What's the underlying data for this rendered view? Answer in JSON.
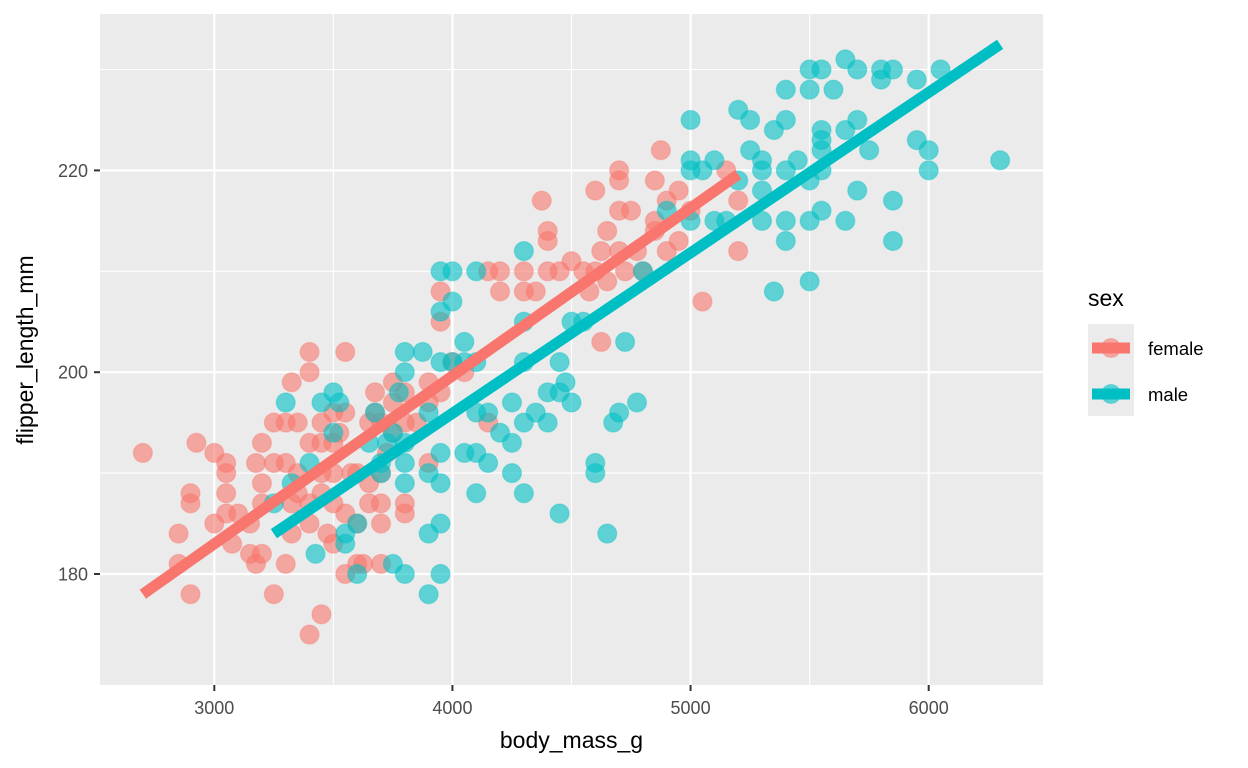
{
  "chart_data": {
    "type": "scatter",
    "title": "",
    "xlabel": "body_mass_g",
    "ylabel": "flipper_length_mm",
    "xlim": [
      2520,
      6480
    ],
    "ylim": [
      169,
      235.5
    ],
    "xticks": [
      3000,
      4000,
      5000,
      6000
    ],
    "xtick_labels": [
      "3000",
      "4000",
      "5000",
      "6000"
    ],
    "yticks": [
      180,
      200,
      220
    ],
    "ytick_labels": [
      "180",
      "200",
      "220"
    ],
    "x_minor": [
      3500,
      4500,
      5500
    ],
    "y_minor": [
      190,
      210,
      230
    ],
    "grid": true,
    "background": "#EBEBEB",
    "legend": {
      "title": "sex",
      "position": "right",
      "entries": [
        {
          "label": "female",
          "color": "#F8766D"
        },
        {
          "label": "male",
          "color": "#00BFC4"
        }
      ]
    },
    "series": [
      {
        "name": "female",
        "color": "#F8766D",
        "points": [
          [
            2700,
            192
          ],
          [
            2850,
            184
          ],
          [
            2850,
            181
          ],
          [
            2900,
            187
          ],
          [
            2900,
            188
          ],
          [
            2900,
            178
          ],
          [
            2925,
            193
          ],
          [
            3000,
            192
          ],
          [
            3000,
            185
          ],
          [
            3050,
            190
          ],
          [
            3050,
            188
          ],
          [
            3050,
            186
          ],
          [
            3050,
            191
          ],
          [
            3075,
            183
          ],
          [
            3100,
            186
          ],
          [
            3150,
            185
          ],
          [
            3150,
            182
          ],
          [
            3175,
            181
          ],
          [
            3175,
            191
          ],
          [
            3200,
            193
          ],
          [
            3200,
            189
          ],
          [
            3200,
            187
          ],
          [
            3200,
            182
          ],
          [
            3250,
            195
          ],
          [
            3250,
            191
          ],
          [
            3250,
            178
          ],
          [
            3300,
            195
          ],
          [
            3300,
            191
          ],
          [
            3300,
            181
          ],
          [
            3325,
            199
          ],
          [
            3325,
            187
          ],
          [
            3325,
            184
          ],
          [
            3350,
            195
          ],
          [
            3350,
            190
          ],
          [
            3350,
            188
          ],
          [
            3400,
            202
          ],
          [
            3400,
            200
          ],
          [
            3400,
            193
          ],
          [
            3400,
            187
          ],
          [
            3400,
            185
          ],
          [
            3400,
            174
          ],
          [
            3450,
            195
          ],
          [
            3450,
            193
          ],
          [
            3450,
            190
          ],
          [
            3450,
            188
          ],
          [
            3450,
            176
          ],
          [
            3475,
            184
          ],
          [
            3500,
            196
          ],
          [
            3500,
            193
          ],
          [
            3500,
            190
          ],
          [
            3500,
            187
          ],
          [
            3500,
            183
          ],
          [
            3525,
            194
          ],
          [
            3550,
            202
          ],
          [
            3550,
            196
          ],
          [
            3550,
            186
          ],
          [
            3550,
            180
          ],
          [
            3575,
            190
          ],
          [
            3600,
            190
          ],
          [
            3600,
            185
          ],
          [
            3600,
            181
          ],
          [
            3625,
            181
          ],
          [
            3650,
            195
          ],
          [
            3650,
            189
          ],
          [
            3650,
            187
          ],
          [
            3675,
            198
          ],
          [
            3675,
            196
          ],
          [
            3700,
            195
          ],
          [
            3700,
            190
          ],
          [
            3700,
            187
          ],
          [
            3700,
            185
          ],
          [
            3700,
            181
          ],
          [
            3725,
            192
          ],
          [
            3750,
            199
          ],
          [
            3750,
            197
          ],
          [
            3750,
            194
          ],
          [
            3800,
            198
          ],
          [
            3800,
            195
          ],
          [
            3800,
            187
          ],
          [
            3800,
            186
          ],
          [
            3850,
            195
          ],
          [
            3900,
            199
          ],
          [
            3900,
            197
          ],
          [
            3900,
            191
          ],
          [
            3950,
            208
          ],
          [
            3950,
            198
          ],
          [
            3950,
            205
          ],
          [
            4000,
            201
          ],
          [
            4050,
            200
          ],
          [
            4150,
            210
          ],
          [
            4150,
            195
          ],
          [
            4200,
            210
          ],
          [
            4200,
            208
          ],
          [
            4300,
            210
          ],
          [
            4300,
            208
          ],
          [
            4350,
            208
          ],
          [
            4375,
            217
          ],
          [
            4400,
            214
          ],
          [
            4400,
            213
          ],
          [
            4400,
            210
          ],
          [
            4450,
            210
          ],
          [
            4500,
            211
          ],
          [
            4550,
            210
          ],
          [
            4575,
            208
          ],
          [
            4600,
            218
          ],
          [
            4600,
            210
          ],
          [
            4625,
            212
          ],
          [
            4650,
            214
          ],
          [
            4650,
            209
          ],
          [
            4700,
            220
          ],
          [
            4700,
            219
          ],
          [
            4700,
            216
          ],
          [
            4700,
            212
          ],
          [
            4725,
            210
          ],
          [
            4750,
            216
          ],
          [
            4775,
            212
          ],
          [
            4800,
            210
          ],
          [
            4850,
            219
          ],
          [
            4850,
            215
          ],
          [
            4850,
            214
          ],
          [
            4875,
            222
          ],
          [
            4900,
            217
          ],
          [
            4900,
            212
          ],
          [
            4950,
            218
          ],
          [
            4950,
            213
          ],
          [
            5000,
            216
          ],
          [
            5050,
            207
          ],
          [
            5150,
            220
          ],
          [
            5200,
            217
          ],
          [
            5200,
            212
          ],
          [
            4625,
            203
          ]
        ]
      },
      {
        "name": "male",
        "color": "#00BFC4",
        "points": [
          [
            3250,
            187
          ],
          [
            3300,
            197
          ],
          [
            3325,
            189
          ],
          [
            3400,
            191
          ],
          [
            3425,
            182
          ],
          [
            3450,
            197
          ],
          [
            3500,
            198
          ],
          [
            3500,
            194
          ],
          [
            3525,
            197
          ],
          [
            3550,
            184
          ],
          [
            3550,
            183
          ],
          [
            3600,
            180
          ],
          [
            3600,
            185
          ],
          [
            3650,
            193
          ],
          [
            3675,
            196
          ],
          [
            3700,
            191
          ],
          [
            3700,
            190
          ],
          [
            3725,
            193
          ],
          [
            3750,
            181
          ],
          [
            3750,
            194
          ],
          [
            3775,
            198
          ],
          [
            3800,
            202
          ],
          [
            3800,
            200
          ],
          [
            3800,
            193
          ],
          [
            3800,
            191
          ],
          [
            3800,
            189
          ],
          [
            3800,
            180
          ],
          [
            3875,
            202
          ],
          [
            3900,
            196
          ],
          [
            3900,
            190
          ],
          [
            3900,
            184
          ],
          [
            3900,
            178
          ],
          [
            3950,
            210
          ],
          [
            3950,
            206
          ],
          [
            3950,
            201
          ],
          [
            3950,
            192
          ],
          [
            3950,
            189
          ],
          [
            3950,
            185
          ],
          [
            3950,
            180
          ],
          [
            4000,
            210
          ],
          [
            4000,
            207
          ],
          [
            4000,
            201
          ],
          [
            4050,
            203
          ],
          [
            4050,
            201
          ],
          [
            4050,
            192
          ],
          [
            4100,
            210
          ],
          [
            4100,
            201
          ],
          [
            4100,
            196
          ],
          [
            4100,
            192
          ],
          [
            4100,
            188
          ],
          [
            4150,
            196
          ],
          [
            4150,
            191
          ],
          [
            4200,
            194
          ],
          [
            4250,
            197
          ],
          [
            4250,
            193
          ],
          [
            4250,
            190
          ],
          [
            4300,
            212
          ],
          [
            4300,
            205
          ],
          [
            4300,
            201
          ],
          [
            4300,
            195
          ],
          [
            4300,
            188
          ],
          [
            4350,
            196
          ],
          [
            4400,
            198
          ],
          [
            4400,
            195
          ],
          [
            4450,
            201
          ],
          [
            4450,
            198
          ],
          [
            4450,
            186
          ],
          [
            4475,
            199
          ],
          [
            4500,
            197
          ],
          [
            4500,
            205
          ],
          [
            4550,
            205
          ],
          [
            4600,
            191
          ],
          [
            4600,
            190
          ],
          [
            4650,
            184
          ],
          [
            4675,
            195
          ],
          [
            4700,
            196
          ],
          [
            4725,
            203
          ],
          [
            4775,
            197
          ],
          [
            4800,
            210
          ],
          [
            4900,
            216
          ],
          [
            5000,
            225
          ],
          [
            5000,
            221
          ],
          [
            5000,
            220
          ],
          [
            5000,
            215
          ],
          [
            5050,
            220
          ],
          [
            5100,
            221
          ],
          [
            5100,
            215
          ],
          [
            5150,
            215
          ],
          [
            5200,
            226
          ],
          [
            5200,
            219
          ],
          [
            5250,
            225
          ],
          [
            5250,
            222
          ],
          [
            5300,
            221
          ],
          [
            5300,
            220
          ],
          [
            5300,
            218
          ],
          [
            5300,
            215
          ],
          [
            5350,
            224
          ],
          [
            5350,
            208
          ],
          [
            5400,
            228
          ],
          [
            5400,
            225
          ],
          [
            5400,
            220
          ],
          [
            5400,
            215
          ],
          [
            5400,
            213
          ],
          [
            5450,
            221
          ],
          [
            5500,
            230
          ],
          [
            5500,
            228
          ],
          [
            5500,
            219
          ],
          [
            5500,
            215
          ],
          [
            5500,
            209
          ],
          [
            5550,
            230
          ],
          [
            5550,
            224
          ],
          [
            5550,
            223
          ],
          [
            5550,
            222
          ],
          [
            5550,
            220
          ],
          [
            5550,
            216
          ],
          [
            5600,
            228
          ],
          [
            5650,
            231
          ],
          [
            5650,
            224
          ],
          [
            5650,
            215
          ],
          [
            5700,
            230
          ],
          [
            5700,
            225
          ],
          [
            5700,
            218
          ],
          [
            5750,
            222
          ],
          [
            5800,
            230
          ],
          [
            5800,
            229
          ],
          [
            5850,
            230
          ],
          [
            5850,
            217
          ],
          [
            5850,
            213
          ],
          [
            5950,
            229
          ],
          [
            5950,
            223
          ],
          [
            6000,
            222
          ],
          [
            6000,
            220
          ],
          [
            6050,
            230
          ],
          [
            6300,
            221
          ]
        ]
      }
    ],
    "fit_lines": [
      {
        "name": "female",
        "color": "#F8766D",
        "x": [
          2700,
          5200
        ],
        "y": [
          178.0,
          219.6
        ]
      },
      {
        "name": "male",
        "color": "#00BFC4",
        "x": [
          3250,
          6300
        ],
        "y": [
          184.0,
          232.5
        ]
      }
    ]
  }
}
